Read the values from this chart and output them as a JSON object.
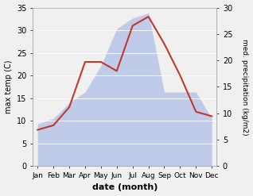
{
  "months": [
    "Jan",
    "Feb",
    "Mar",
    "Apr",
    "May",
    "Jun",
    "Jul",
    "Aug",
    "Sep",
    "Oct",
    "Nov",
    "Dec"
  ],
  "temperature": [
    8,
    9,
    13,
    23,
    23,
    21,
    31,
    33,
    27,
    20,
    12,
    11
  ],
  "precipitation": [
    8,
    9,
    12,
    14,
    19,
    26,
    28,
    29,
    14,
    14,
    14,
    9
  ],
  "temp_color": "#c0392b",
  "precip_color": "#b8c4e8",
  "left_ylim": [
    0,
    35
  ],
  "right_ylim": [
    0,
    30
  ],
  "left_yticks": [
    0,
    5,
    10,
    15,
    20,
    25,
    30,
    35
  ],
  "right_yticks": [
    0,
    5,
    10,
    15,
    20,
    25,
    30
  ],
  "ylabel_left": "max temp (C)",
  "ylabel_right": "med. precipitation (kg/m2)",
  "xlabel": "date (month)",
  "bg_color": "#f0f0f0"
}
